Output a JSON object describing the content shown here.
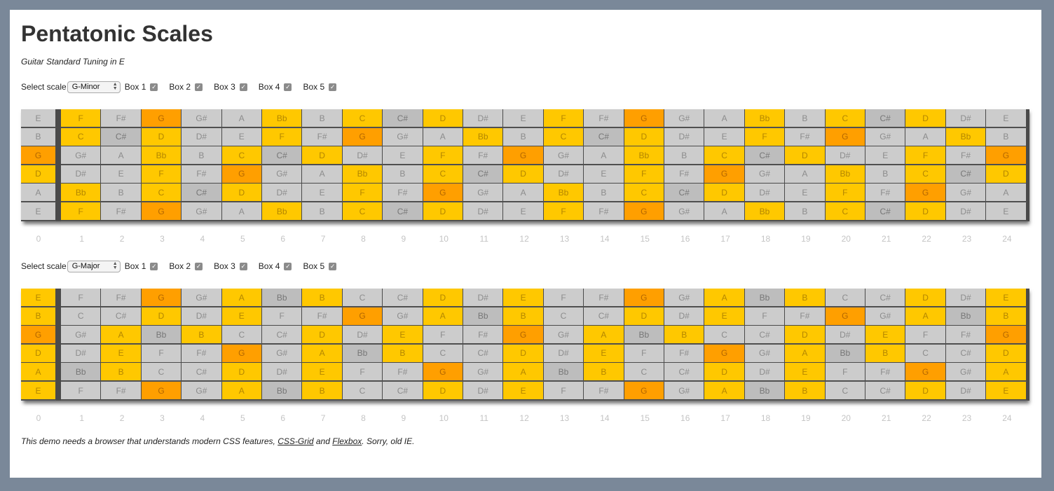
{
  "title": "Pentatonic Scales",
  "subtitle": "Guitar Standard Tuning in E",
  "colors": {
    "page_bg": "#7a8899",
    "content_bg": "#ffffff",
    "note_default": "#cccccc",
    "note_pentatonic": "#ffc800",
    "note_root": "#ff9f00",
    "note_sharp_highlight": "#bdbdbd"
  },
  "fret_numbers": [
    "0",
    "1",
    "2",
    "3",
    "4",
    "5",
    "6",
    "7",
    "8",
    "9",
    "10",
    "11",
    "12",
    "13",
    "14",
    "15",
    "16",
    "17",
    "18",
    "19",
    "20",
    "21",
    "22",
    "23",
    "24"
  ],
  "boards": [
    {
      "controls": {
        "select_label": "Select scale",
        "selected_scale": "G-Minor",
        "boxes": [
          {
            "label": "Box 1",
            "checked": true
          },
          {
            "label": "Box 2",
            "checked": true
          },
          {
            "label": "Box 3",
            "checked": true
          },
          {
            "label": "Box 4",
            "checked": true
          },
          {
            "label": "Box 5",
            "checked": true
          }
        ]
      },
      "strings": [
        {
          "notes": [
            "E",
            "F",
            "F#",
            "G",
            "G#",
            "A",
            "Bb",
            "B",
            "C",
            "C#",
            "D",
            "D#",
            "E",
            "F",
            "F#",
            "G",
            "G#",
            "A",
            "Bb",
            "B",
            "C",
            "C#",
            "D",
            "D#",
            "E"
          ],
          "states": [
            "n",
            "p",
            "n",
            "r",
            "n",
            "n",
            "p",
            "n",
            "p",
            "s",
            "p",
            "n",
            "n",
            "p",
            "n",
            "r",
            "n",
            "n",
            "p",
            "n",
            "p",
            "s",
            "p",
            "n",
            "n"
          ]
        },
        {
          "notes": [
            "B",
            "C",
            "C#",
            "D",
            "D#",
            "E",
            "F",
            "F#",
            "G",
            "G#",
            "A",
            "Bb",
            "B",
            "C",
            "C#",
            "D",
            "D#",
            "E",
            "F",
            "F#",
            "G",
            "G#",
            "A",
            "Bb",
            "B"
          ],
          "states": [
            "n",
            "p",
            "s",
            "p",
            "n",
            "n",
            "p",
            "n",
            "r",
            "n",
            "n",
            "p",
            "n",
            "p",
            "s",
            "p",
            "n",
            "n",
            "p",
            "n",
            "r",
            "n",
            "n",
            "p",
            "n"
          ]
        },
        {
          "notes": [
            "G",
            "G#",
            "A",
            "Bb",
            "B",
            "C",
            "C#",
            "D",
            "D#",
            "E",
            "F",
            "F#",
            "G",
            "G#",
            "A",
            "Bb",
            "B",
            "C",
            "C#",
            "D",
            "D#",
            "E",
            "F",
            "F#",
            "G"
          ],
          "states": [
            "r",
            "n",
            "n",
            "p",
            "n",
            "p",
            "s",
            "p",
            "n",
            "n",
            "p",
            "n",
            "r",
            "n",
            "n",
            "p",
            "n",
            "p",
            "s",
            "p",
            "n",
            "n",
            "p",
            "n",
            "r"
          ]
        },
        {
          "notes": [
            "D",
            "D#",
            "E",
            "F",
            "F#",
            "G",
            "G#",
            "A",
            "Bb",
            "B",
            "C",
            "C#",
            "D",
            "D#",
            "E",
            "F",
            "F#",
            "G",
            "G#",
            "A",
            "Bb",
            "B",
            "C",
            "C#",
            "D"
          ],
          "states": [
            "p",
            "n",
            "n",
            "p",
            "n",
            "r",
            "n",
            "n",
            "p",
            "n",
            "p",
            "s",
            "p",
            "n",
            "n",
            "p",
            "n",
            "r",
            "n",
            "n",
            "p",
            "n",
            "p",
            "s",
            "p"
          ]
        },
        {
          "notes": [
            "A",
            "Bb",
            "B",
            "C",
            "C#",
            "D",
            "D#",
            "E",
            "F",
            "F#",
            "G",
            "G#",
            "A",
            "Bb",
            "B",
            "C",
            "C#",
            "D",
            "D#",
            "E",
            "F",
            "F#",
            "G",
            "G#",
            "A"
          ],
          "states": [
            "n",
            "p",
            "n",
            "p",
            "s",
            "p",
            "n",
            "n",
            "p",
            "n",
            "r",
            "n",
            "n",
            "p",
            "n",
            "p",
            "s",
            "p",
            "n",
            "n",
            "p",
            "n",
            "r",
            "n",
            "n"
          ]
        },
        {
          "notes": [
            "E",
            "F",
            "F#",
            "G",
            "G#",
            "A",
            "Bb",
            "B",
            "C",
            "C#",
            "D",
            "D#",
            "E",
            "F",
            "F#",
            "G",
            "G#",
            "A",
            "Bb",
            "B",
            "C",
            "C#",
            "D",
            "D#",
            "E"
          ],
          "states": [
            "n",
            "p",
            "n",
            "r",
            "n",
            "n",
            "p",
            "n",
            "p",
            "s",
            "p",
            "n",
            "n",
            "p",
            "n",
            "r",
            "n",
            "n",
            "p",
            "n",
            "p",
            "s",
            "p",
            "n",
            "n"
          ]
        }
      ]
    },
    {
      "controls": {
        "select_label": "Select scale",
        "selected_scale": "G-Major",
        "boxes": [
          {
            "label": "Box 1",
            "checked": true
          },
          {
            "label": "Box 2",
            "checked": true
          },
          {
            "label": "Box 3",
            "checked": true
          },
          {
            "label": "Box 4",
            "checked": true
          },
          {
            "label": "Box 5",
            "checked": true
          }
        ]
      },
      "strings": [
        {
          "notes": [
            "E",
            "F",
            "F#",
            "G",
            "G#",
            "A",
            "Bb",
            "B",
            "C",
            "C#",
            "D",
            "D#",
            "E",
            "F",
            "F#",
            "G",
            "G#",
            "A",
            "Bb",
            "B",
            "C",
            "C#",
            "D",
            "D#",
            "E"
          ],
          "states": [
            "p",
            "n",
            "n",
            "r",
            "n",
            "p",
            "s",
            "p",
            "n",
            "n",
            "p",
            "n",
            "p",
            "n",
            "n",
            "r",
            "n",
            "p",
            "s",
            "p",
            "n",
            "n",
            "p",
            "n",
            "p"
          ]
        },
        {
          "notes": [
            "B",
            "C",
            "C#",
            "D",
            "D#",
            "E",
            "F",
            "F#",
            "G",
            "G#",
            "A",
            "Bb",
            "B",
            "C",
            "C#",
            "D",
            "D#",
            "E",
            "F",
            "F#",
            "G",
            "G#",
            "A",
            "Bb",
            "B"
          ],
          "states": [
            "p",
            "n",
            "n",
            "p",
            "n",
            "p",
            "n",
            "n",
            "r",
            "n",
            "p",
            "s",
            "p",
            "n",
            "n",
            "p",
            "n",
            "p",
            "n",
            "n",
            "r",
            "n",
            "p",
            "s",
            "p"
          ]
        },
        {
          "notes": [
            "G",
            "G#",
            "A",
            "Bb",
            "B",
            "C",
            "C#",
            "D",
            "D#",
            "E",
            "F",
            "F#",
            "G",
            "G#",
            "A",
            "Bb",
            "B",
            "C",
            "C#",
            "D",
            "D#",
            "E",
            "F",
            "F#",
            "G"
          ],
          "states": [
            "r",
            "n",
            "p",
            "s",
            "p",
            "n",
            "n",
            "p",
            "n",
            "p",
            "n",
            "n",
            "r",
            "n",
            "p",
            "s",
            "p",
            "n",
            "n",
            "p",
            "n",
            "p",
            "n",
            "n",
            "r"
          ]
        },
        {
          "notes": [
            "D",
            "D#",
            "E",
            "F",
            "F#",
            "G",
            "G#",
            "A",
            "Bb",
            "B",
            "C",
            "C#",
            "D",
            "D#",
            "E",
            "F",
            "F#",
            "G",
            "G#",
            "A",
            "Bb",
            "B",
            "C",
            "C#",
            "D"
          ],
          "states": [
            "p",
            "n",
            "p",
            "n",
            "n",
            "r",
            "n",
            "p",
            "s",
            "p",
            "n",
            "n",
            "p",
            "n",
            "p",
            "n",
            "n",
            "r",
            "n",
            "p",
            "s",
            "p",
            "n",
            "n",
            "p"
          ]
        },
        {
          "notes": [
            "A",
            "Bb",
            "B",
            "C",
            "C#",
            "D",
            "D#",
            "E",
            "F",
            "F#",
            "G",
            "G#",
            "A",
            "Bb",
            "B",
            "C",
            "C#",
            "D",
            "D#",
            "E",
            "F",
            "F#",
            "G",
            "G#",
            "A"
          ],
          "states": [
            "p",
            "s",
            "p",
            "n",
            "n",
            "p",
            "n",
            "p",
            "n",
            "n",
            "r",
            "n",
            "p",
            "s",
            "p",
            "n",
            "n",
            "p",
            "n",
            "p",
            "n",
            "n",
            "r",
            "n",
            "p"
          ]
        },
        {
          "notes": [
            "E",
            "F",
            "F#",
            "G",
            "G#",
            "A",
            "Bb",
            "B",
            "C",
            "C#",
            "D",
            "D#",
            "E",
            "F",
            "F#",
            "G",
            "G#",
            "A",
            "Bb",
            "B",
            "C",
            "C#",
            "D",
            "D#",
            "E"
          ],
          "states": [
            "p",
            "n",
            "n",
            "r",
            "n",
            "p",
            "s",
            "p",
            "n",
            "n",
            "p",
            "n",
            "p",
            "n",
            "n",
            "r",
            "n",
            "p",
            "s",
            "p",
            "n",
            "n",
            "p",
            "n",
            "p"
          ]
        }
      ]
    }
  ],
  "footer": {
    "prefix": "This demo needs a browser that understands modern CSS features, ",
    "link1": "CSS-Grid",
    "and": " and ",
    "link2": "Flexbox",
    "suffix": ". Sorry, old IE."
  }
}
